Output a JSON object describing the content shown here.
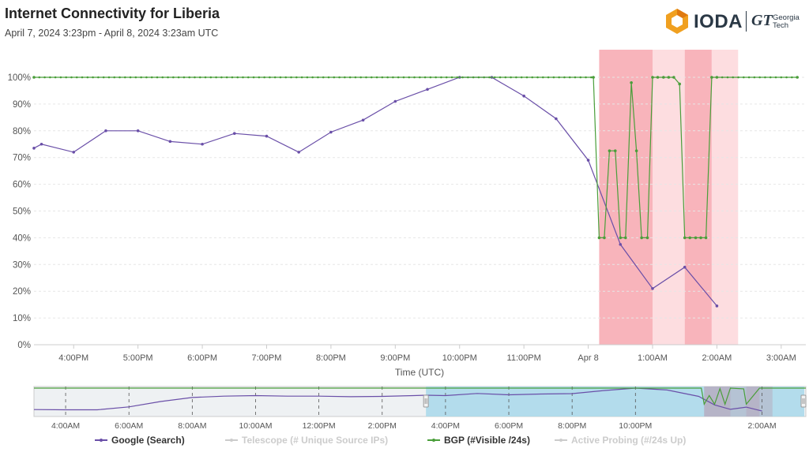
{
  "header": {
    "title": "Internet Connectivity for Liberia",
    "subtitle": "April 7, 2024 3:23pm - April 8, 2024 3:23am UTC"
  },
  "logo": {
    "ioda_text": "IODA",
    "gt_mark": "GT",
    "gt_text_line1": "Georgia",
    "gt_text_line2": "Tech"
  },
  "colors": {
    "google": "#6a4fa8",
    "bgp": "#4a9e3a",
    "outage_dark": "#f8b4bb",
    "outage_light": "#fddde0",
    "navigator_selection": "#a8d8ea",
    "disabled_legend": "#cccccc"
  },
  "legend": [
    {
      "label": "Google (Search)",
      "enabled": true,
      "color": "#6a4fa8"
    },
    {
      "label": "Telescope (# Unique Source IPs)",
      "enabled": false,
      "color": "#cccccc"
    },
    {
      "label": "BGP (#Visible /24s)",
      "enabled": true,
      "color": "#4a9e3a"
    },
    {
      "label": "Active Probing (#/24s Up)",
      "enabled": false,
      "color": "#cccccc"
    }
  ],
  "chart_data": {
    "type": "line",
    "title": "Internet Connectivity for Liberia",
    "xlabel": "Time (UTC)",
    "ylabel": "",
    "x_range_hours": [
      15.383,
      27.383
    ],
    "ylim": [
      0,
      100
    ],
    "y_ticks": [
      "0%",
      "10%",
      "20%",
      "30%",
      "40%",
      "50%",
      "60%",
      "70%",
      "80%",
      "90%",
      "100%"
    ],
    "x_ticks": [
      {
        "t": 16,
        "label": "4:00PM"
      },
      {
        "t": 17,
        "label": "5:00PM"
      },
      {
        "t": 18,
        "label": "6:00PM"
      },
      {
        "t": 19,
        "label": "7:00PM"
      },
      {
        "t": 20,
        "label": "8:00PM"
      },
      {
        "t": 21,
        "label": "9:00PM"
      },
      {
        "t": 22,
        "label": "10:00PM"
      },
      {
        "t": 23,
        "label": "11:00PM"
      },
      {
        "t": 24,
        "label": "Apr 8"
      },
      {
        "t": 25,
        "label": "1:00AM"
      },
      {
        "t": 26,
        "label": "2:00AM"
      },
      {
        "t": 27,
        "label": "3:00AM"
      }
    ],
    "grid": true,
    "legend_position": "bottom",
    "outage_regions": [
      {
        "start": 24.17,
        "end": 25.0,
        "level": "dark"
      },
      {
        "start": 25.0,
        "end": 25.5,
        "level": "light"
      },
      {
        "start": 25.5,
        "end": 25.92,
        "level": "dark"
      },
      {
        "start": 25.92,
        "end": 26.33,
        "level": "light"
      }
    ],
    "series": [
      {
        "name": "Google (Search)",
        "x": [
          15.383,
          15.5,
          16.0,
          16.5,
          17.0,
          17.5,
          18.0,
          18.5,
          19.0,
          19.5,
          20.0,
          20.5,
          21.0,
          21.5,
          22.0,
          22.5,
          23.0,
          23.5,
          24.0,
          24.5,
          25.0,
          25.5,
          26.0
        ],
        "values": [
          73.5,
          75,
          72,
          80,
          80,
          76,
          75,
          79,
          78,
          72,
          79.5,
          84,
          91,
          95.5,
          100,
          100,
          93,
          84.5,
          69,
          37.5,
          21,
          29,
          14.5
        ]
      },
      {
        "name": "BGP (#Visible /24s)",
        "x": [
          15.383,
          24.08,
          24.17,
          24.25,
          24.33,
          24.42,
          24.5,
          24.58,
          24.67,
          24.75,
          24.83,
          24.92,
          25.0,
          25.08,
          25.17,
          25.25,
          25.33,
          25.42,
          25.5,
          25.58,
          25.67,
          25.75,
          25.83,
          25.92,
          26.0,
          27.25
        ],
        "values": [
          100,
          100,
          40,
          40,
          72.5,
          72.5,
          40,
          40,
          98,
          72.5,
          40,
          40,
          100,
          100,
          100,
          100,
          100,
          97.5,
          40,
          40,
          40,
          40,
          40,
          100,
          100,
          100
        ]
      }
    ]
  },
  "navigator": {
    "x_range_hours": [
      3.0,
      27.383
    ],
    "selection_hours": [
      15.383,
      27.383
    ],
    "ticks": [
      {
        "t": 4,
        "label": "4:00AM"
      },
      {
        "t": 6,
        "label": "6:00AM"
      },
      {
        "t": 8,
        "label": "8:00AM"
      },
      {
        "t": 10,
        "label": "10:00AM"
      },
      {
        "t": 12,
        "label": "12:00PM"
      },
      {
        "t": 14,
        "label": "2:00PM"
      },
      {
        "t": 16,
        "label": "4:00PM"
      },
      {
        "t": 18,
        "label": "6:00PM"
      },
      {
        "t": 20,
        "label": "8:00PM"
      },
      {
        "t": 22,
        "label": "10:00PM"
      },
      {
        "t": 26,
        "label": "2:00AM"
      }
    ],
    "google": {
      "x": [
        3.0,
        4.0,
        5.0,
        6.0,
        7.0,
        8.0,
        9.0,
        10.0,
        11.0,
        12.0,
        13.0,
        14.0,
        15.0,
        15.383,
        16.0,
        17.0,
        18.0,
        19.0,
        20.0,
        21.0,
        22.0,
        23.0,
        24.0,
        24.5,
        25.0,
        25.5,
        26.0
      ],
      "values": [
        20,
        19,
        19,
        30,
        50,
        65,
        70,
        72,
        70,
        70,
        68,
        69,
        72,
        73.5,
        72,
        80,
        75,
        78,
        79.5,
        91,
        100,
        93,
        69,
        37.5,
        21,
        29,
        14.5
      ]
    },
    "bgp": {
      "x": [
        3.0,
        24.08,
        24.17,
        24.33,
        24.5,
        24.67,
        24.83,
        25.0,
        25.42,
        25.5,
        25.92,
        27.383
      ],
      "values": [
        100,
        100,
        40,
        72.5,
        40,
        98,
        40,
        100,
        97.5,
        40,
        100,
        100
      ]
    }
  }
}
